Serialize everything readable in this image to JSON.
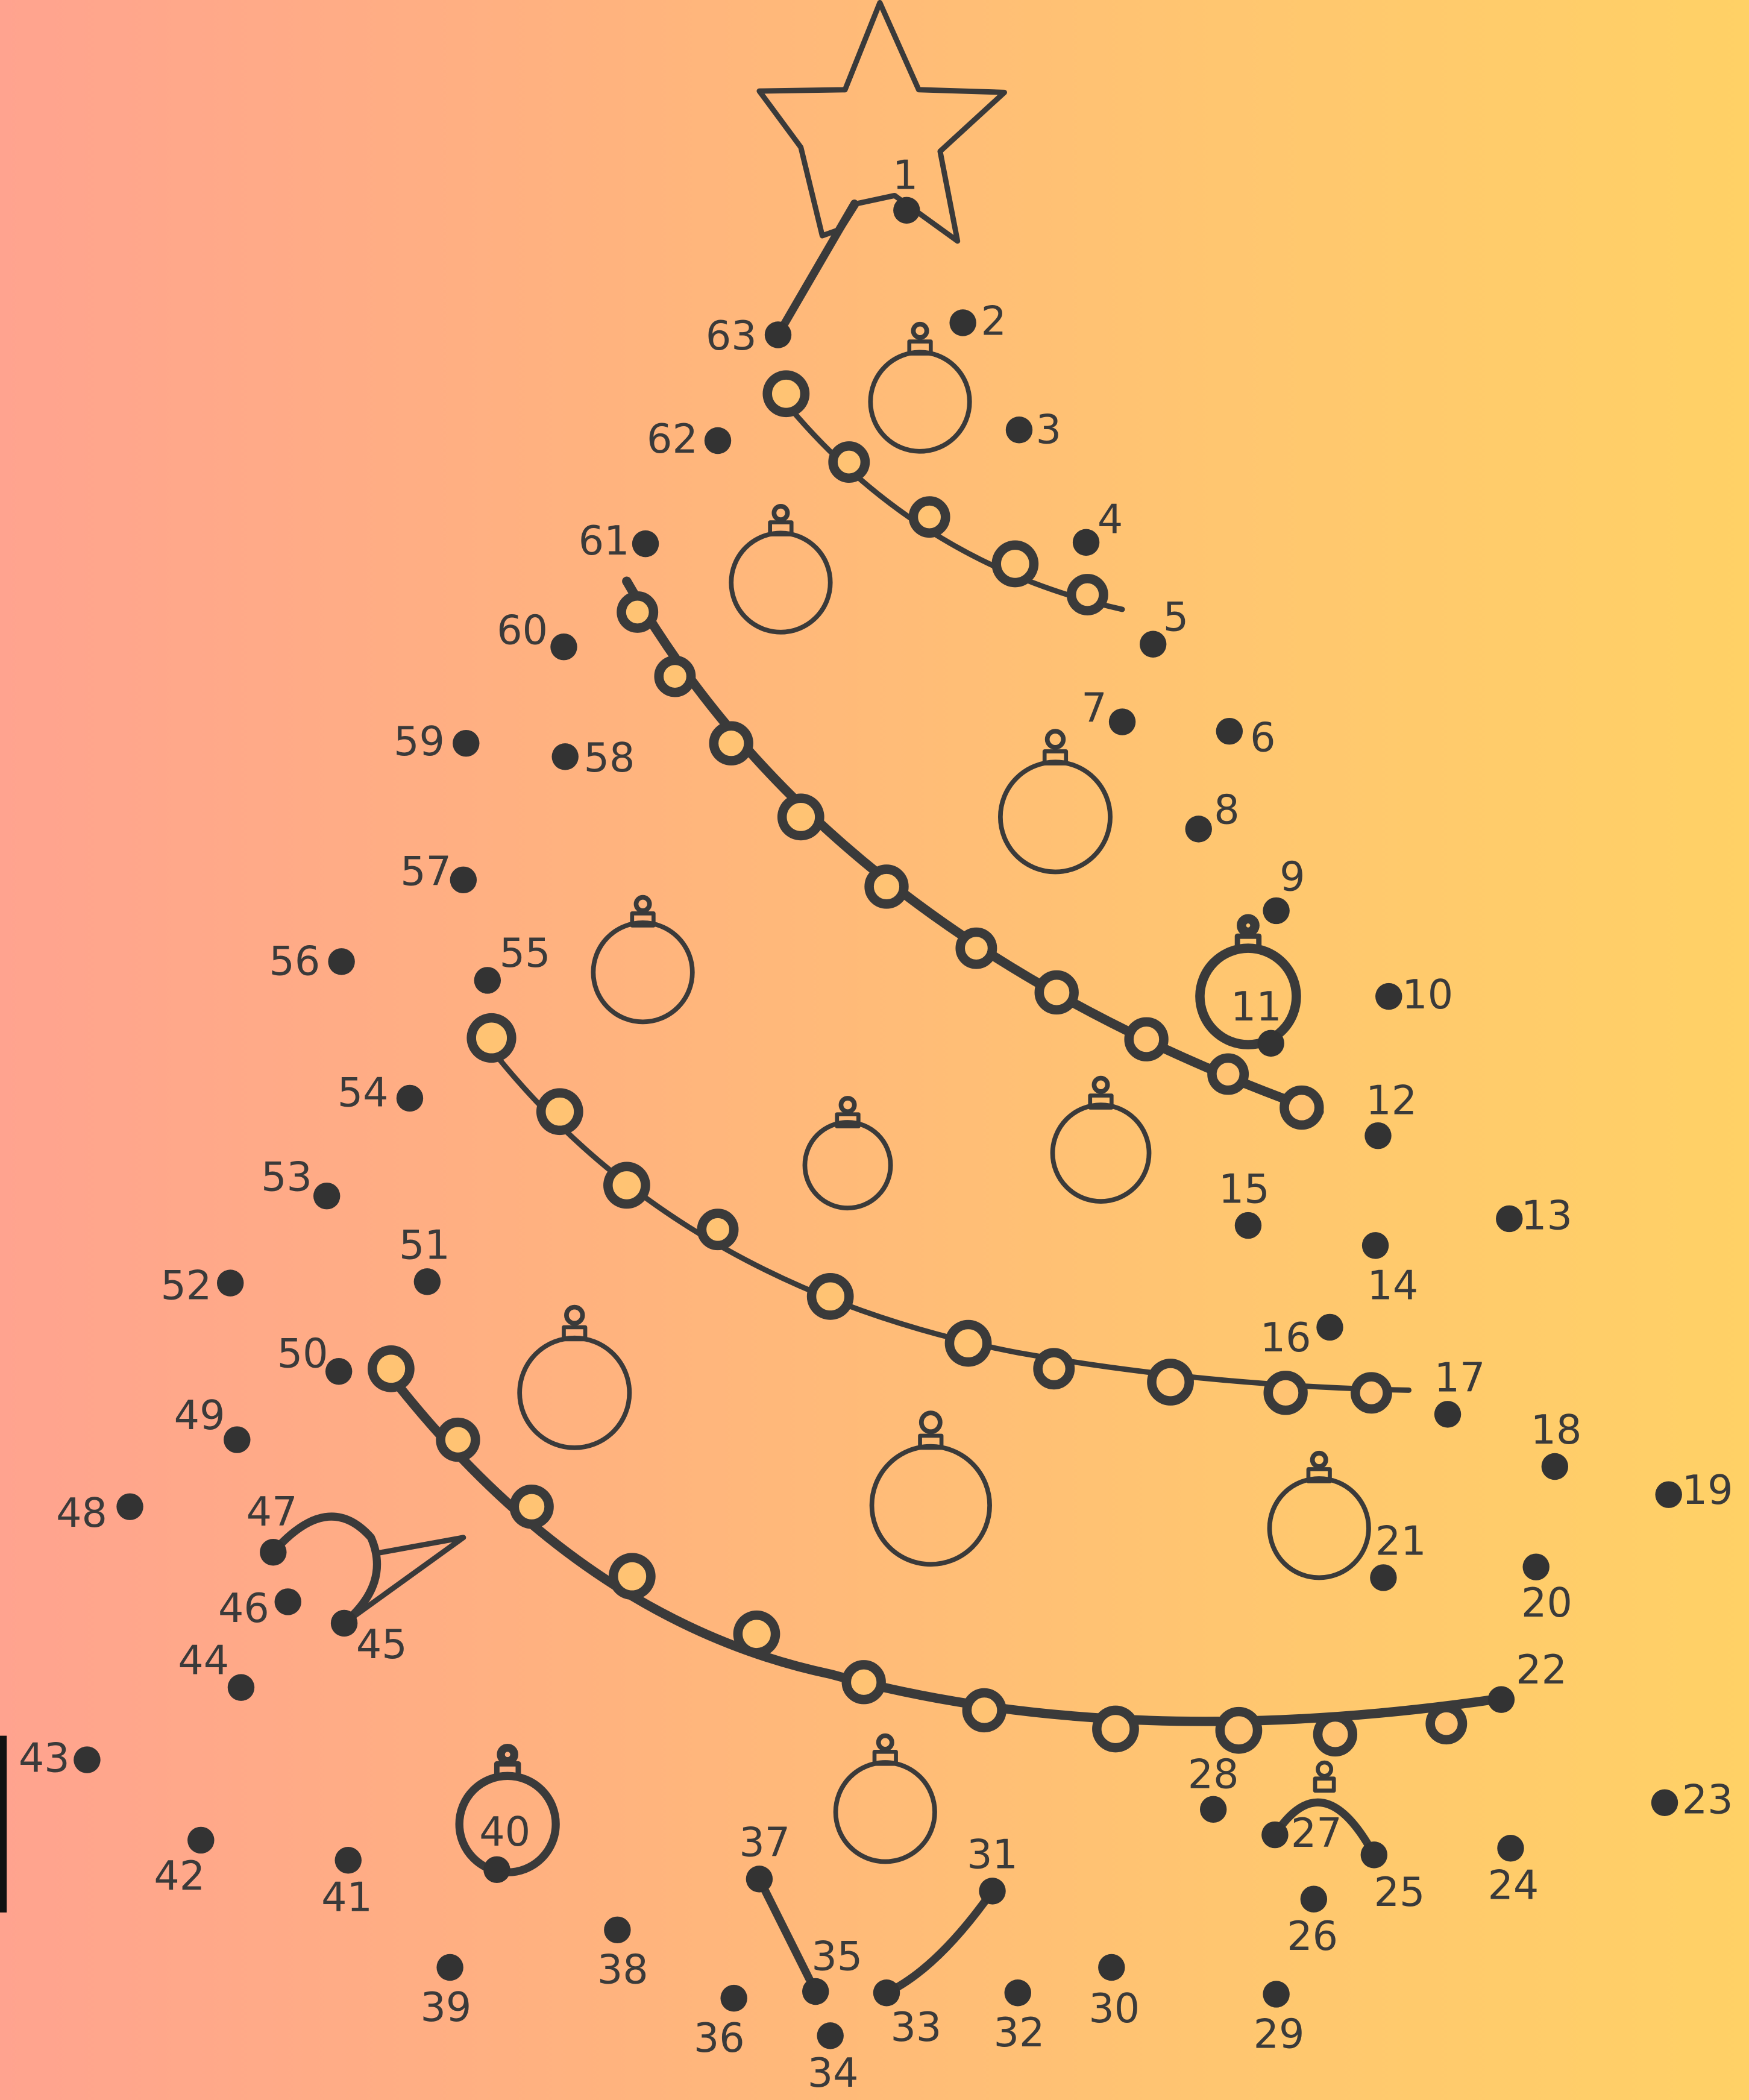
{
  "puzzle": {
    "type": "connect-the-dots",
    "picture": "christmas-tree",
    "dot_count": 63,
    "dot_labels": [
      "1",
      "2",
      "3",
      "4",
      "5",
      "6",
      "7",
      "8",
      "9",
      "10",
      "11",
      "12",
      "13",
      "14",
      "15",
      "16",
      "17",
      "18",
      "19",
      "20",
      "21",
      "22",
      "23",
      "24",
      "25",
      "26",
      "27",
      "28",
      "29",
      "30",
      "31",
      "32",
      "33",
      "34",
      "35",
      "36",
      "37",
      "38",
      "39",
      "40",
      "41",
      "42",
      "43",
      "44",
      "45",
      "46",
      "47",
      "48",
      "49",
      "50",
      "51",
      "52",
      "53",
      "54",
      "55",
      "56",
      "57",
      "58",
      "59",
      "60",
      "61",
      "62",
      "63"
    ]
  },
  "colors": {
    "background_left": "#ffa38f",
    "background_right": "#ffd166",
    "ink": "#3a3a3a",
    "dot": "#333333",
    "bead_fill": "#ffc373"
  },
  "icons": {
    "star": "star-icon",
    "ornament": "ornament-icon",
    "garland": "bead-garland"
  }
}
